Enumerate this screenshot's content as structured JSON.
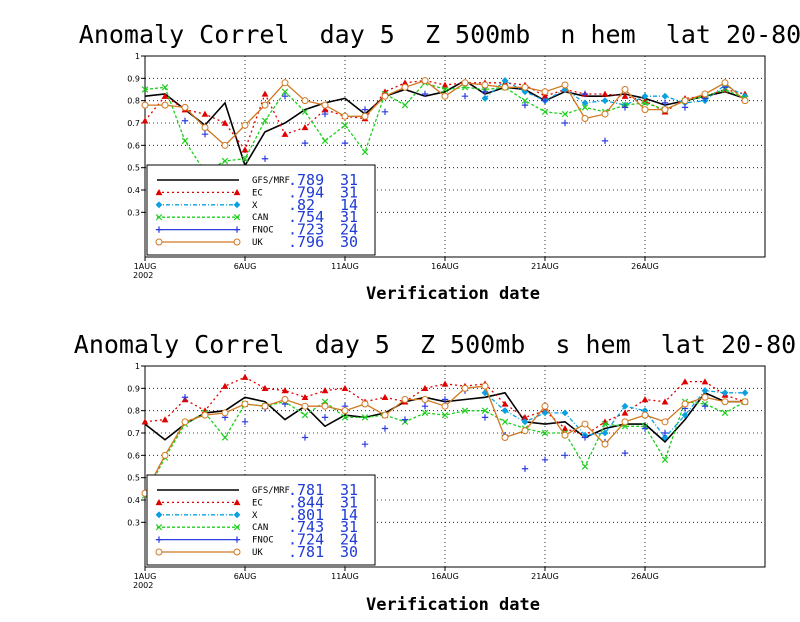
{
  "chart_data": [
    {
      "type": "line",
      "title": "Anomaly Correl  day 5  Z 500mb  n hem  lat 20-80",
      "xlabel": "Verification date",
      "ylim": [
        0.1,
        1.0
      ],
      "x_ticks": [
        "1AUG\n2002",
        "6AUG",
        "11AUG",
        "16AUG",
        "21AUG",
        "26AUG"
      ],
      "y_ticks": [
        "0.3",
        "0.4",
        "0.5",
        "0.6",
        "0.7",
        "0.8",
        "0.9",
        "1"
      ],
      "grid": true,
      "legend_position": "bottom-left",
      "days": [
        1,
        2,
        3,
        4,
        5,
        6,
        7,
        8,
        9,
        10,
        11,
        12,
        13,
        14,
        15,
        16,
        17,
        18,
        19,
        20,
        21,
        22,
        23,
        24,
        25,
        26,
        27,
        28,
        29,
        30,
        31
      ],
      "series": [
        {
          "name": "GFS/MRF",
          "value": ".789",
          "count": "31",
          "color": "#000000",
          "marker": "none",
          "dash": "",
          "values": [
            0.82,
            0.83,
            0.76,
            0.69,
            0.79,
            0.51,
            0.66,
            0.7,
            0.76,
            0.79,
            0.81,
            0.74,
            0.82,
            0.85,
            0.82,
            0.84,
            0.89,
            0.83,
            0.86,
            0.85,
            0.8,
            0.84,
            0.82,
            0.82,
            0.83,
            0.81,
            0.78,
            0.8,
            0.82,
            0.84,
            0.81
          ]
        },
        {
          "name": "EC",
          "value": ".794",
          "count": "31",
          "color": "#e00000",
          "marker": "tri",
          "dash": "2,3",
          "values": [
            0.71,
            0.82,
            0.76,
            0.74,
            0.7,
            0.58,
            0.83,
            0.65,
            0.68,
            0.76,
            0.73,
            0.72,
            0.84,
            0.88,
            0.89,
            0.87,
            0.88,
            0.88,
            0.88,
            0.87,
            0.82,
            0.85,
            0.83,
            0.83,
            0.82,
            0.8,
            0.75,
            0.81,
            0.82,
            0.85,
            0.83
          ]
        },
        {
          "name": "X",
          "value": ".82",
          "count": "14",
          "color": "#0aa0e0",
          "marker": "dia",
          "dash": "4,2,1,2",
          "values": [
            null,
            null,
            null,
            null,
            null,
            null,
            null,
            null,
            null,
            null,
            null,
            null,
            null,
            null,
            null,
            null,
            null,
            0.81,
            0.89,
            0.84,
            0.8,
            0.85,
            0.79,
            0.8,
            0.78,
            0.82,
            0.82,
            0.79,
            0.8,
            0.87,
            0.82
          ]
        },
        {
          "name": "CAN",
          "value": ".754",
          "count": "31",
          "color": "#1fcf1f",
          "marker": "x",
          "dash": "3,2",
          "values": [
            0.85,
            0.86,
            0.62,
            0.48,
            0.53,
            0.54,
            0.71,
            0.84,
            0.75,
            0.62,
            0.69,
            0.57,
            0.83,
            0.78,
            0.88,
            0.85,
            0.86,
            0.85,
            0.86,
            0.8,
            0.75,
            0.74,
            0.77,
            0.75,
            0.78,
            0.79,
            0.76,
            0.8,
            0.82,
            0.85,
            0.81
          ]
        },
        {
          "name": "FNOC",
          "value": ".723",
          "count": "24",
          "color": "#2b3de0",
          "marker": "plus",
          "dash": "",
          "values": [
            null,
            null,
            0.71,
            0.65,
            0.47,
            0.43,
            0.54,
            0.82,
            0.61,
            0.74,
            0.61,
            0.76,
            0.75,
            null,
            0.83,
            null,
            0.82,
            0.84,
            0.86,
            0.78,
            0.8,
            0.7,
            0.83,
            0.62,
            0.77,
            0.76,
            0.79,
            0.77,
            0.81,
            0.86,
            null
          ]
        },
        {
          "name": "UK",
          "value": ".796",
          "count": "30",
          "color": "#d07820",
          "marker": "circle",
          "dash": "",
          "values": [
            0.78,
            0.78,
            0.77,
            0.68,
            0.6,
            0.69,
            0.78,
            0.88,
            0.8,
            0.78,
            0.73,
            0.73,
            0.82,
            0.86,
            0.89,
            0.82,
            0.88,
            0.87,
            0.86,
            0.86,
            0.84,
            0.87,
            0.72,
            0.74,
            0.85,
            0.76,
            0.76,
            0.8,
            0.83,
            0.88,
            0.8
          ]
        }
      ]
    },
    {
      "type": "line",
      "title": "Anomaly Correl  day 5  Z 500mb  s hem  lat 20-80",
      "xlabel": "Verification date",
      "ylim": [
        0.1,
        1.0
      ],
      "x_ticks": [
        "1AUG\n2002",
        "6AUG",
        "11AUG",
        "16AUG",
        "21AUG",
        "26AUG"
      ],
      "y_ticks": [
        "0.3",
        "0.4",
        "0.5",
        "0.6",
        "0.7",
        "0.8",
        "0.9",
        "1"
      ],
      "grid": true,
      "legend_position": "bottom-left",
      "days": [
        1,
        2,
        3,
        4,
        5,
        6,
        7,
        8,
        9,
        10,
        11,
        12,
        13,
        14,
        15,
        16,
        17,
        18,
        19,
        20,
        21,
        22,
        23,
        24,
        25,
        26,
        27,
        28,
        29,
        30,
        31
      ],
      "series": [
        {
          "name": "GFS/MRF",
          "value": ".781",
          "count": "31",
          "color": "#000000",
          "marker": "none",
          "dash": "",
          "values": [
            0.74,
            0.67,
            0.74,
            0.79,
            0.8,
            0.86,
            0.84,
            0.76,
            0.82,
            0.73,
            0.78,
            0.77,
            0.79,
            0.84,
            0.86,
            0.84,
            0.85,
            0.86,
            0.88,
            0.75,
            0.74,
            0.75,
            0.68,
            0.72,
            0.74,
            0.74,
            0.66,
            0.76,
            0.88,
            0.84,
            0.84
          ]
        },
        {
          "name": "EC",
          "value": ".844",
          "count": "31",
          "color": "#e00000",
          "marker": "tri",
          "dash": "2,3",
          "values": [
            0.75,
            0.76,
            0.85,
            0.8,
            0.91,
            0.95,
            0.9,
            0.89,
            0.86,
            0.89,
            0.9,
            0.84,
            0.86,
            0.84,
            0.9,
            0.92,
            0.91,
            0.92,
            0.83,
            0.77,
            0.8,
            0.72,
            0.69,
            0.75,
            0.79,
            0.85,
            0.84,
            0.93,
            0.93,
            0.87,
            0.84
          ]
        },
        {
          "name": "X",
          "value": ".801",
          "count": "14",
          "color": "#0aa0e0",
          "marker": "dia",
          "dash": "4,2,1,2",
          "values": [
            null,
            null,
            null,
            null,
            null,
            null,
            null,
            null,
            null,
            null,
            null,
            null,
            null,
            null,
            null,
            null,
            null,
            0.88,
            0.8,
            0.75,
            0.79,
            0.79,
            0.69,
            0.7,
            0.82,
            0.8,
            0.68,
            0.78,
            0.89,
            0.88,
            0.88
          ]
        },
        {
          "name": "CAN",
          "value": ".743",
          "count": "31",
          "color": "#1fcf1f",
          "marker": "x",
          "dash": "3,2",
          "values": [
            0.42,
            0.59,
            0.74,
            0.79,
            0.68,
            0.83,
            0.82,
            0.84,
            0.78,
            0.84,
            0.77,
            0.77,
            0.78,
            0.75,
            0.79,
            0.78,
            0.8,
            0.8,
            0.75,
            0.72,
            0.7,
            0.7,
            0.55,
            0.74,
            0.73,
            0.73,
            0.58,
            0.84,
            0.83,
            0.79,
            0.84
          ]
        },
        {
          "name": "FNOC",
          "value": ".724",
          "count": "24",
          "color": "#2b3de0",
          "marker": "plus",
          "dash": "",
          "values": [
            null,
            null,
            0.86,
            null,
            0.77,
            0.75,
            0.81,
            0.83,
            0.68,
            0.77,
            0.82,
            0.65,
            0.72,
            0.76,
            0.82,
            0.85,
            0.89,
            0.77,
            0.69,
            0.54,
            0.58,
            0.6,
            0.68,
            0.66,
            0.61,
            0.72,
            0.7,
            0.81,
            0.82,
            null,
            null
          ]
        },
        {
          "name": "UK",
          "value": ".781",
          "count": "30",
          "color": "#d07820",
          "marker": "circle",
          "dash": "",
          "values": [
            0.43,
            0.6,
            0.75,
            0.78,
            0.79,
            0.83,
            0.82,
            0.85,
            0.82,
            0.82,
            0.8,
            0.83,
            0.78,
            0.85,
            0.85,
            0.82,
            0.9,
            0.91,
            0.68,
            0.71,
            0.82,
            0.69,
            0.74,
            0.65,
            0.75,
            0.78,
            0.75,
            0.83,
            0.86,
            0.84,
            0.84
          ]
        }
      ]
    }
  ]
}
